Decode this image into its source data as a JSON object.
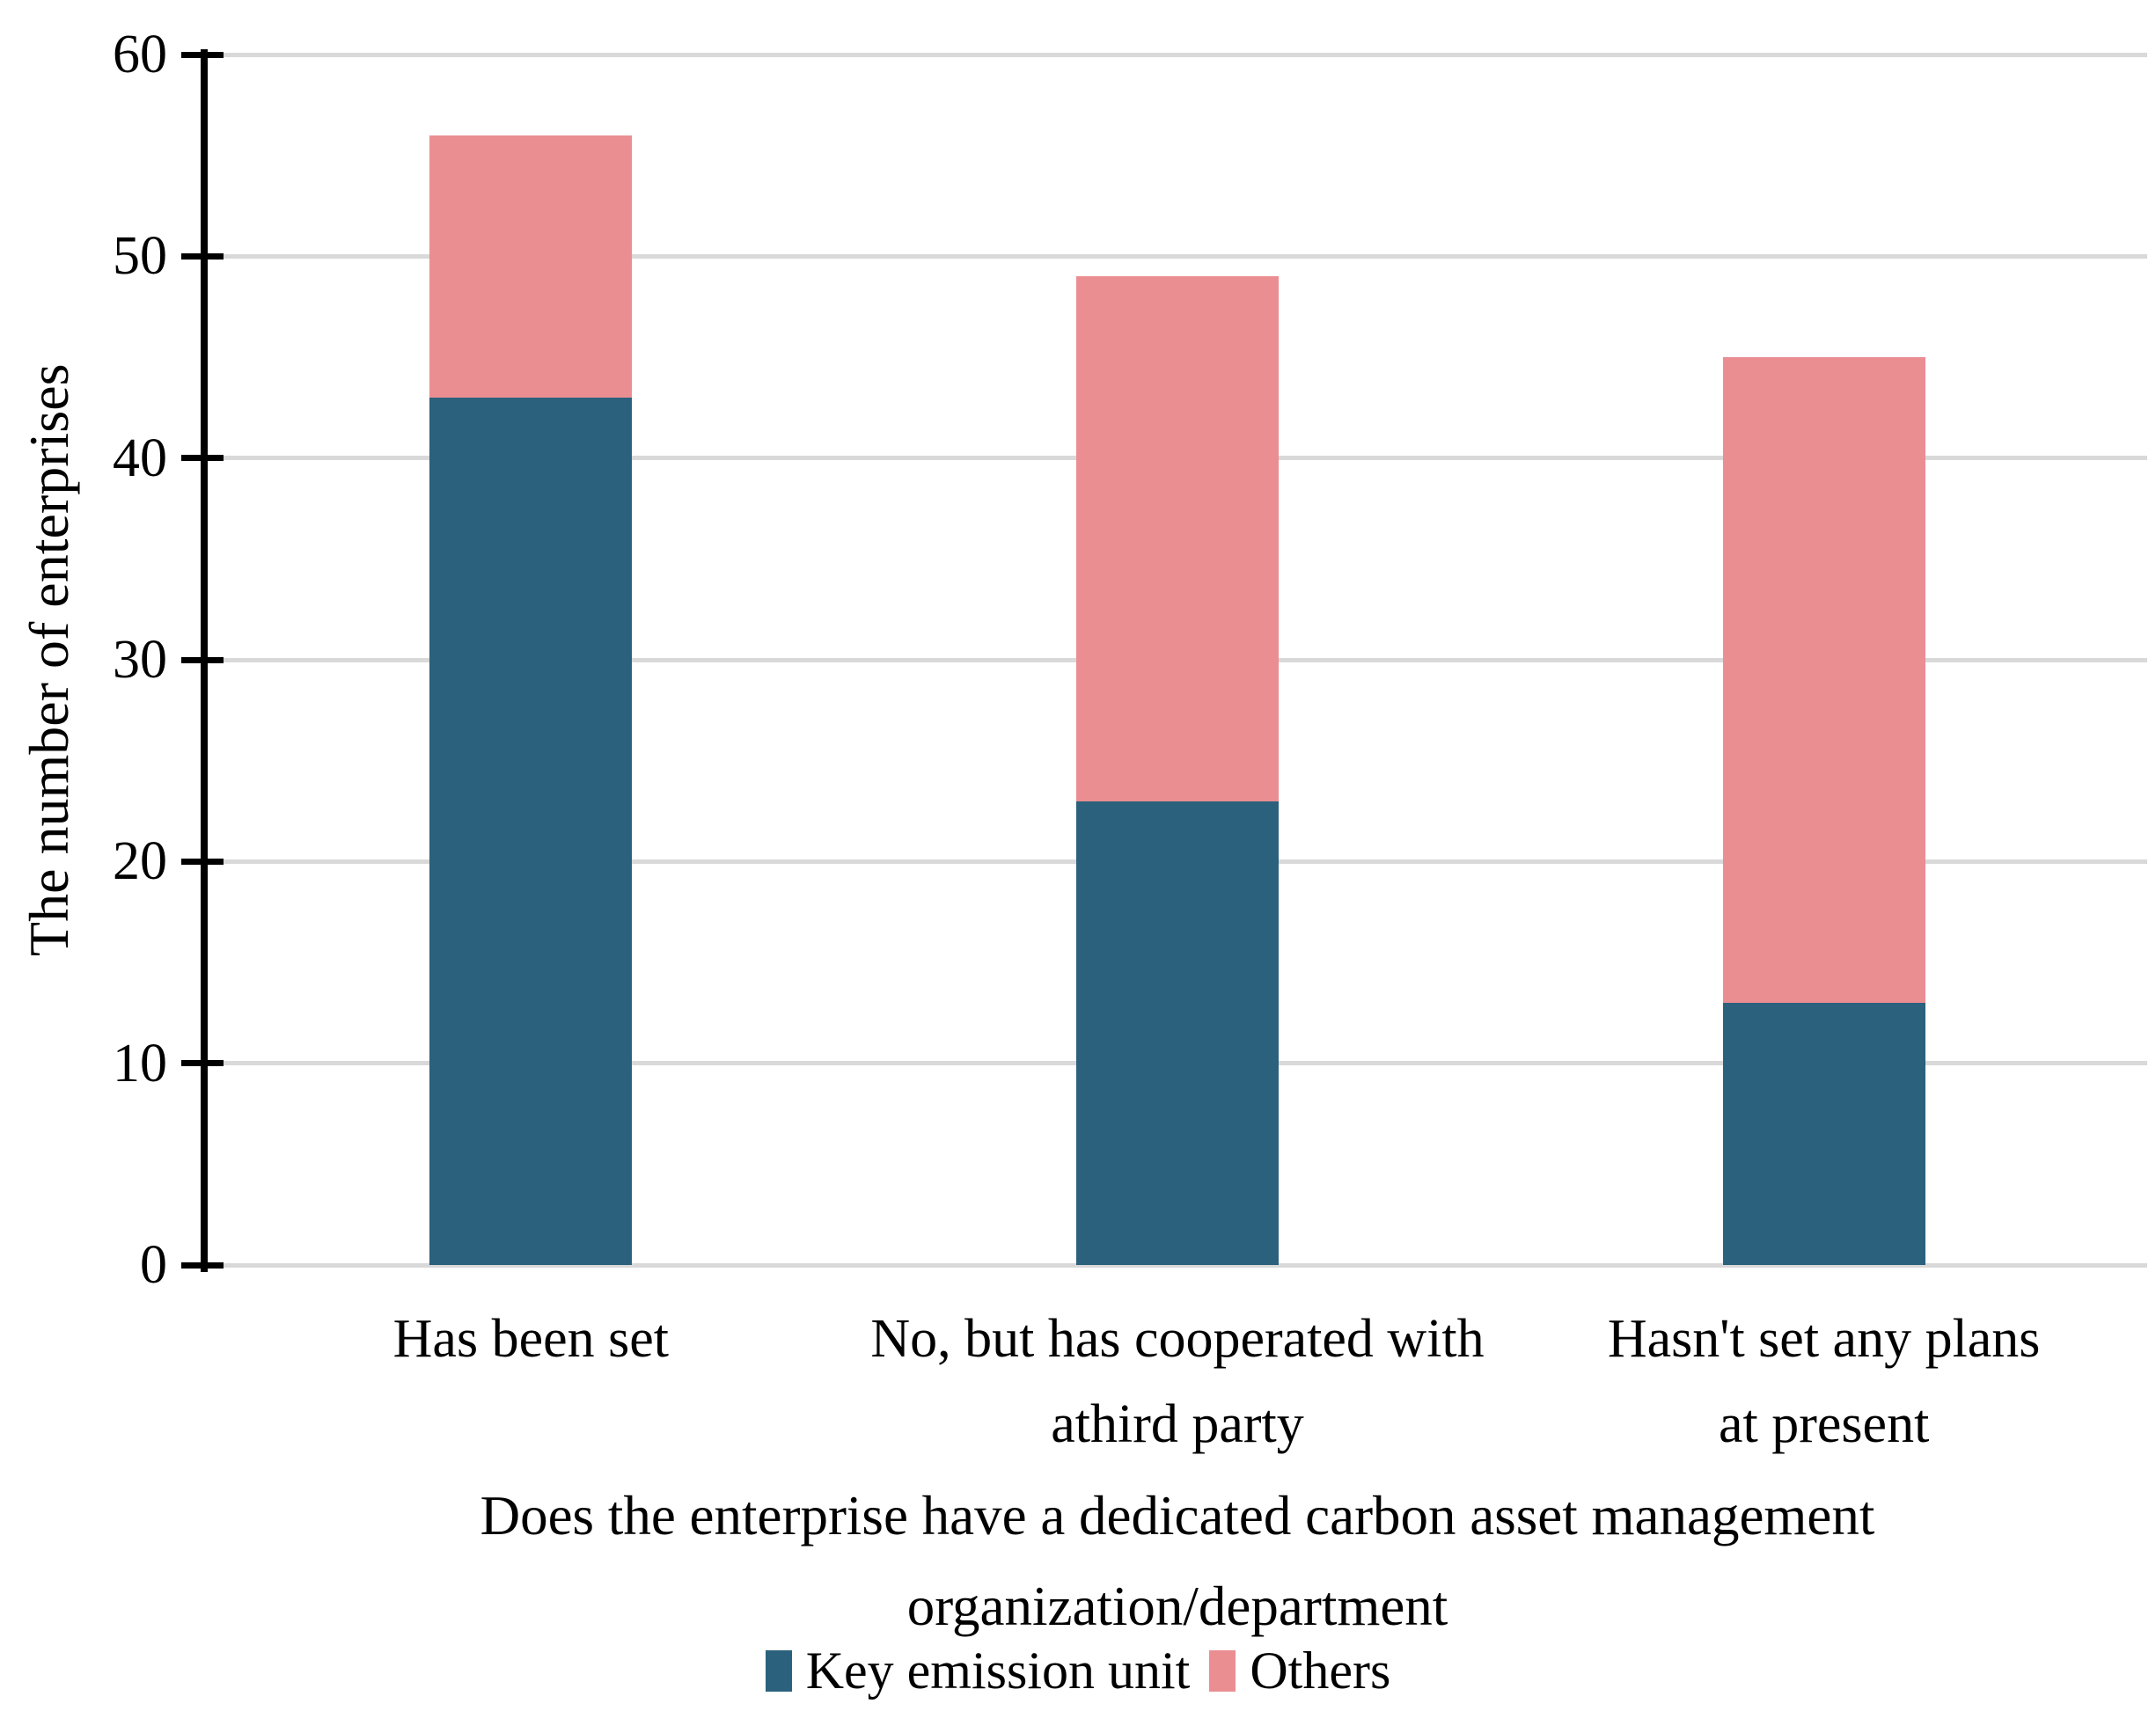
{
  "figure": {
    "background": "#ffffff",
    "axis_color": "#000000",
    "gridline_color": "#d9d9d9"
  },
  "legend": {
    "position": "bottom-center",
    "items": [
      {
        "label": "Key emission unit",
        "color": "#2B617C"
      },
      {
        "label": "Others",
        "color": "#EA8E92"
      }
    ]
  },
  "chart_data": {
    "type": "bar",
    "stacked": true,
    "categories": [
      "Has been set",
      "No, but has cooperated with\nathird party",
      "Hasn't set any plans\nat present"
    ],
    "series": [
      {
        "name": "Key emission unit",
        "color": "#2B617C",
        "values": [
          43,
          23,
          13
        ]
      },
      {
        "name": "Others",
        "color": "#EA8E92",
        "values": [
          13,
          26,
          32
        ]
      }
    ],
    "stacked_totals": [
      56,
      49,
      45
    ],
    "title": "",
    "xlabel": "Does the enterprise have a dedicated carbon asset management organization/department",
    "xlabel_lines": [
      "Does the enterprise have a dedicated carbon asset management",
      "organization/department"
    ],
    "ylabel": "The number of enterprises",
    "ylim": [
      0,
      60
    ],
    "yticks": [
      0,
      10,
      20,
      30,
      40,
      50,
      60
    ],
    "grid": true,
    "legend_position": "bottom"
  }
}
